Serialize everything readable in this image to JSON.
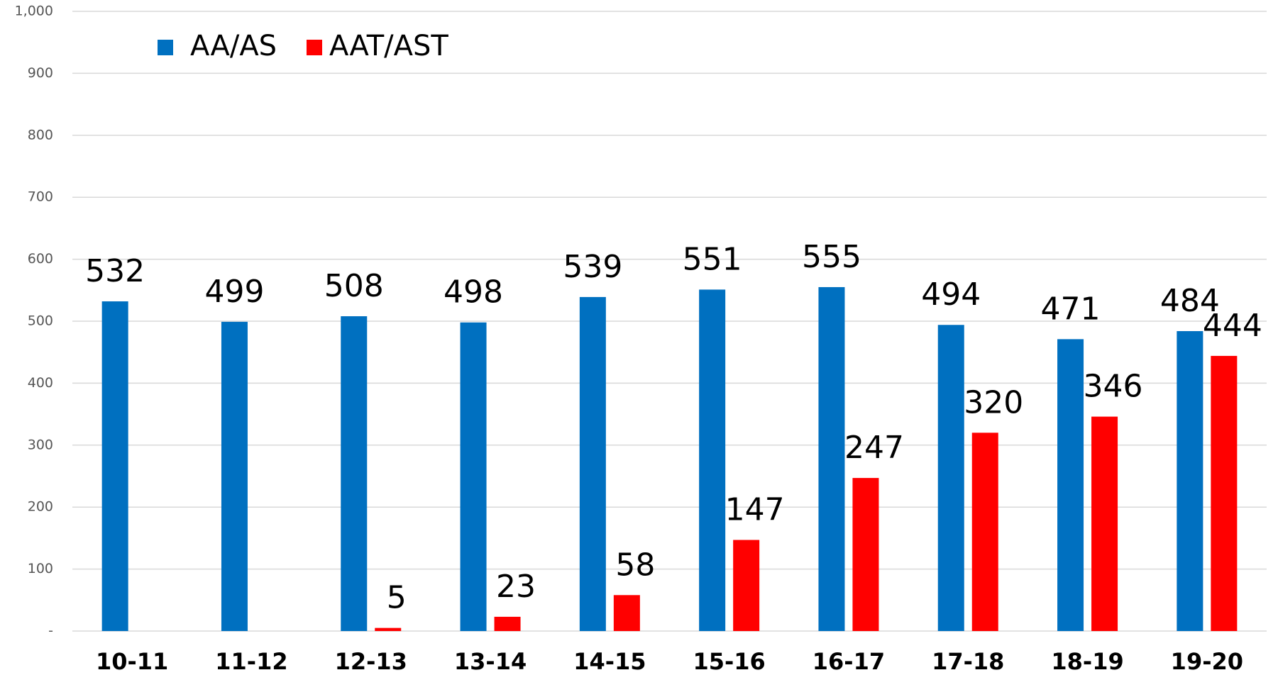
{
  "chart_data": {
    "type": "bar",
    "categories": [
      "10-11",
      "11-12",
      "12-13",
      "13-14",
      "14-15",
      "15-16",
      "16-17",
      "17-18",
      "18-19",
      "19-20"
    ],
    "series": [
      {
        "name": "AA/AS",
        "color": "#0070c0",
        "values": [
          532,
          499,
          508,
          498,
          539,
          551,
          555,
          494,
          471,
          484
        ]
      },
      {
        "name": "AAT/AST",
        "color": "#ff0000",
        "values": [
          null,
          null,
          5,
          23,
          58,
          147,
          247,
          320,
          346,
          444
        ]
      }
    ],
    "ylim": [
      0,
      1000
    ],
    "yticks": [
      {
        "value": 0,
        "label": "-"
      },
      100,
      200,
      300,
      400,
      500,
      600,
      700,
      800,
      900,
      {
        "value": 1000,
        "label": "1,000"
      }
    ],
    "grid": true,
    "legend": "top-left"
  }
}
